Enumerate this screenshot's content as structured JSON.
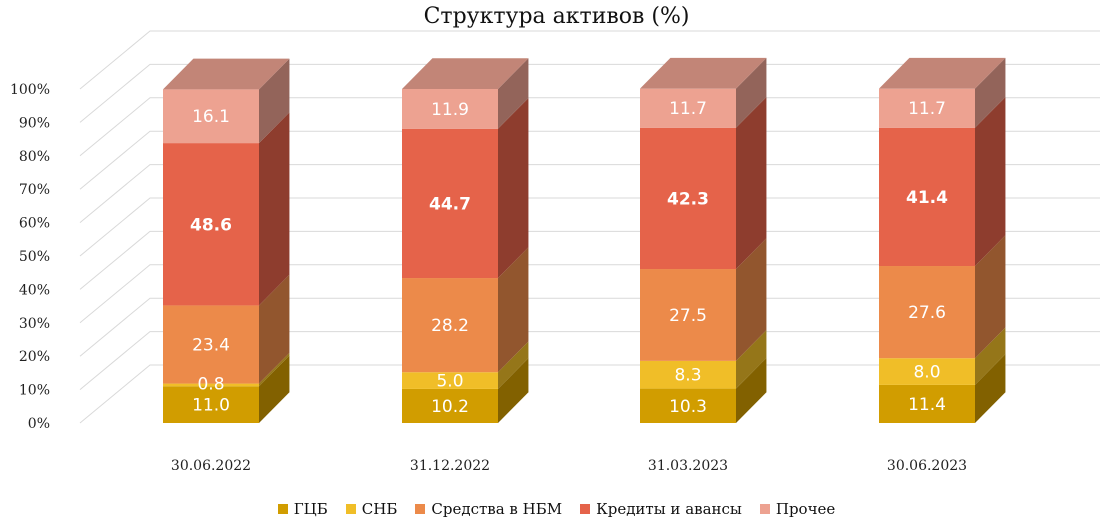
{
  "chart_data": {
    "type": "bar",
    "stacked": true,
    "normalized_percent": true,
    "three_d": true,
    "title": "Структура активов (%)",
    "categories": [
      "30.06.2022",
      "31.12.2022",
      "31.03.2023",
      "30.06.2023"
    ],
    "y_ticks": [
      "0%",
      "10%",
      "20%",
      "30%",
      "40%",
      "50%",
      "60%",
      "70%",
      "80%",
      "90%",
      "100%"
    ],
    "ylim": [
      0,
      100
    ],
    "grid": true,
    "legend_position": "bottom",
    "series": [
      {
        "name": "ГЦБ",
        "color": "#D19D00",
        "values": [
          11.0,
          10.2,
          10.3,
          11.4
        ],
        "labels": [
          "11.0",
          "10.2",
          "10.3",
          "11.4"
        ]
      },
      {
        "name": "СНБ",
        "color": "#F0BE28",
        "values": [
          0.8,
          5.0,
          8.3,
          8.0
        ],
        "labels": [
          "0.8",
          "5.0",
          "8.3",
          "8.0"
        ]
      },
      {
        "name": "Средства в НБМ",
        "color": "#EC8A4A",
        "values": [
          23.4,
          28.2,
          27.5,
          27.6
        ],
        "labels": [
          "23.4",
          "28.2",
          "27.5",
          "27.6"
        ]
      },
      {
        "name": "Кредиты и авансы",
        "color": "#E5634A",
        "values": [
          48.6,
          44.7,
          42.3,
          41.4
        ],
        "labels": [
          "48.6",
          "44.7",
          "42.3",
          "41.4"
        ]
      },
      {
        "name": "Прочее",
        "color": "#EDA291",
        "values": [
          16.1,
          11.9,
          11.7,
          11.7
        ],
        "labels": [
          "16.1",
          "11.9",
          "11.7",
          "11.7"
        ]
      }
    ]
  }
}
